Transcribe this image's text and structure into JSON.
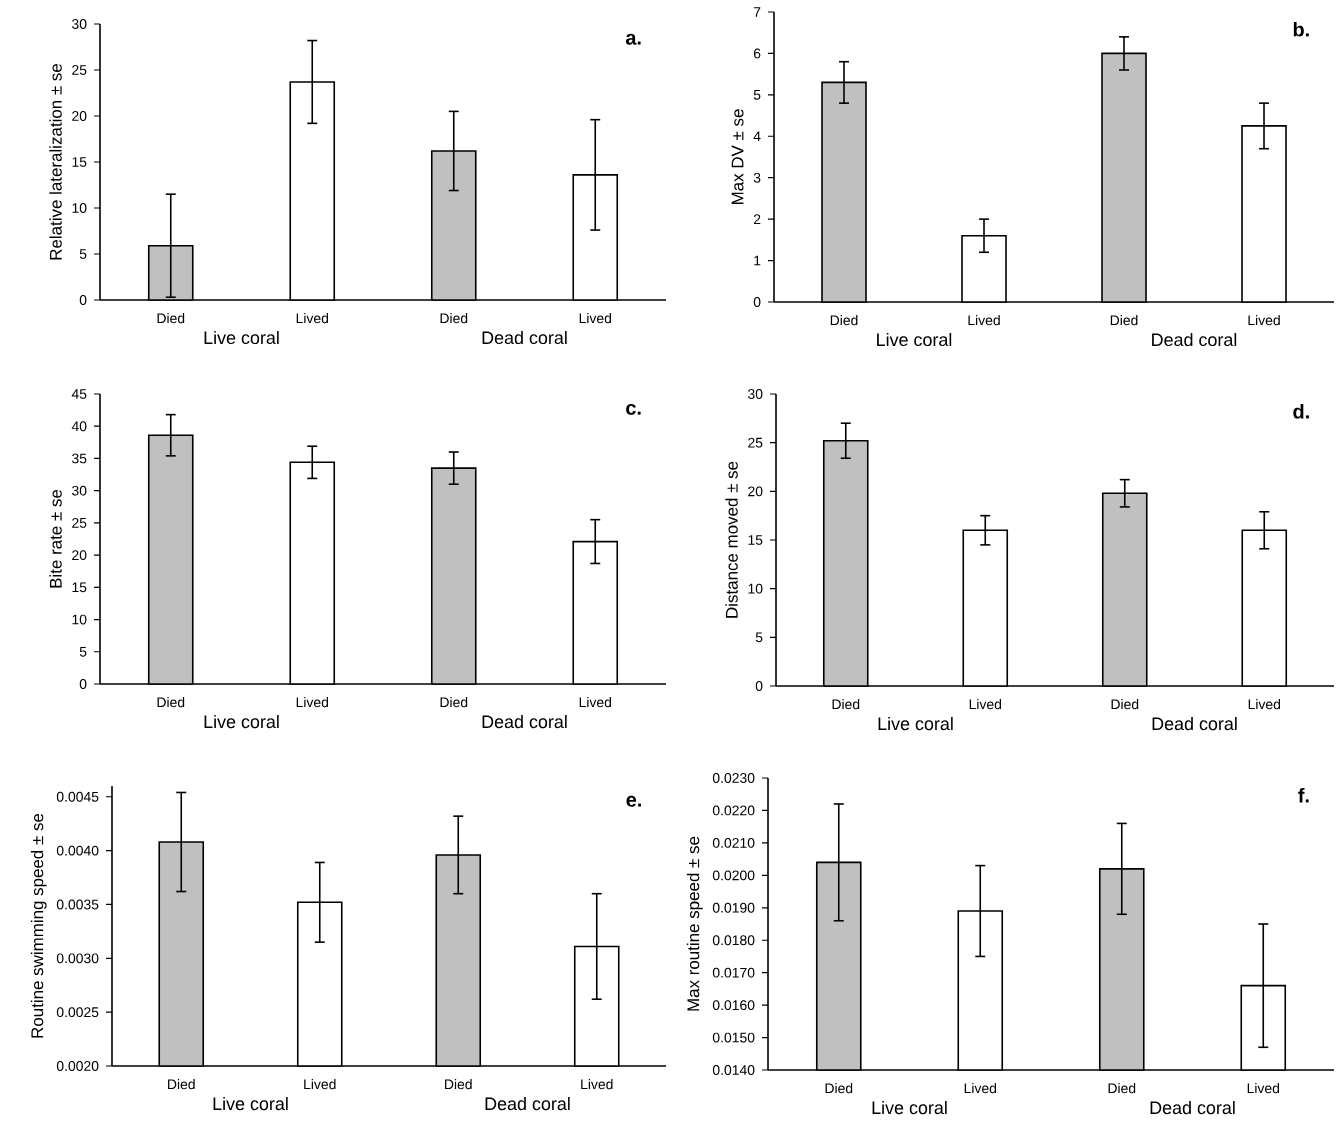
{
  "chart_data": [
    {
      "type": "bar",
      "title": "a.",
      "ylabel": "Relative lateralization ± se",
      "categories": [
        "Died",
        "Lived",
        "Died",
        "Lived"
      ],
      "values": [
        5.9,
        23.7,
        16.2,
        13.6
      ],
      "errors": [
        5.6,
        4.5,
        4.3,
        6.0
      ],
      "colors": [
        "#c0c0c0",
        "#ffffff",
        "#c0c0c0",
        "#ffffff"
      ],
      "ylim": [
        0,
        30
      ],
      "yticks": [
        0,
        5,
        10,
        15,
        20,
        25,
        30
      ],
      "annotations": [
        "Live coral",
        "Dead coral"
      ]
    },
    {
      "type": "bar",
      "title": "b.",
      "ylabel": "Max DV ± se",
      "categories": [
        "Died",
        "Lived",
        "Died",
        "Lived"
      ],
      "values": [
        5.3,
        1.6,
        6.0,
        4.25
      ],
      "errors": [
        0.5,
        0.4,
        0.4,
        0.55
      ],
      "colors": [
        "#c0c0c0",
        "#ffffff",
        "#c0c0c0",
        "#ffffff"
      ],
      "ylim": [
        0,
        7
      ],
      "yticks": [
        0,
        1,
        2,
        3,
        4,
        5,
        6,
        7
      ],
      "annotations": [
        "Live coral",
        "Dead coral"
      ]
    },
    {
      "type": "bar",
      "title": "c.",
      "ylabel": "Bite rate ± se",
      "categories": [
        "Died",
        "Lived",
        "Died",
        "Lived"
      ],
      "values": [
        38.6,
        34.4,
        33.5,
        22.1
      ],
      "errors": [
        3.2,
        2.5,
        2.5,
        3.4
      ],
      "colors": [
        "#c0c0c0",
        "#ffffff",
        "#c0c0c0",
        "#ffffff"
      ],
      "ylim": [
        0,
        45
      ],
      "yticks": [
        0,
        5,
        10,
        15,
        20,
        25,
        30,
        35,
        40,
        45
      ],
      "annotations": [
        "Live coral",
        "Dead coral"
      ]
    },
    {
      "type": "bar",
      "title": "d.",
      "ylabel": "Distance moved ± se",
      "categories": [
        "Died",
        "Lived",
        "Died",
        "Lived"
      ],
      "values": [
        25.2,
        16.0,
        19.8,
        16.0
      ],
      "errors": [
        1.8,
        1.5,
        1.4,
        1.9
      ],
      "colors": [
        "#c0c0c0",
        "#ffffff",
        "#c0c0c0",
        "#ffffff"
      ],
      "ylim": [
        0,
        30
      ],
      "yticks": [
        0,
        5,
        10,
        15,
        20,
        25,
        30
      ],
      "annotations": [
        "Live coral",
        "Dead coral"
      ]
    },
    {
      "type": "bar",
      "title": "e.",
      "ylabel": "Routine swimming speed ± se",
      "categories": [
        "Died",
        "Lived",
        "Died",
        "Lived"
      ],
      "values": [
        0.00408,
        0.00352,
        0.00396,
        0.00311
      ],
      "errors": [
        0.00046,
        0.00037,
        0.00036,
        0.00049
      ],
      "colors": [
        "#c0c0c0",
        "#ffffff",
        "#c0c0c0",
        "#ffffff"
      ],
      "ylim": [
        0.002,
        0.0046
      ],
      "yticks": [
        {
          "value": 0.002,
          "label": "0.0020"
        },
        {
          "value": 0.0025,
          "label": "0.0025"
        },
        {
          "value": 0.003,
          "label": "0.0030"
        },
        {
          "value": 0.0035,
          "label": "0.0035"
        },
        {
          "value": 0.004,
          "label": "0.0040"
        },
        {
          "value": 0.0045,
          "label": "0.0045"
        }
      ],
      "annotations": [
        "Live coral",
        "Dead coral"
      ]
    },
    {
      "type": "bar",
      "title": "f.",
      "ylabel": "Max routine speed ± se",
      "categories": [
        "Died",
        "Lived",
        "Died",
        "Lived"
      ],
      "values": [
        0.0204,
        0.0189,
        0.0202,
        0.0166
      ],
      "errors": [
        0.0018,
        0.0014,
        0.0014,
        0.0019
      ],
      "colors": [
        "#c0c0c0",
        "#ffffff",
        "#c0c0c0",
        "#ffffff"
      ],
      "ylim": [
        0.014,
        0.023
      ],
      "yticks": [
        {
          "value": 0.014,
          "label": "0.0140"
        },
        {
          "value": 0.015,
          "label": "0.0150"
        },
        {
          "value": 0.016,
          "label": "0.0160"
        },
        {
          "value": 0.017,
          "label": "0.0170"
        },
        {
          "value": 0.018,
          "label": "0.0180"
        },
        {
          "value": 0.019,
          "label": "0.0190"
        },
        {
          "value": 0.02,
          "label": "0.0200"
        },
        {
          "value": 0.021,
          "label": "0.0210"
        },
        {
          "value": 0.022,
          "label": "0.0220"
        },
        {
          "value": 0.023,
          "label": "0.0230"
        }
      ],
      "annotations": [
        "Live coral",
        "Dead coral"
      ]
    }
  ]
}
